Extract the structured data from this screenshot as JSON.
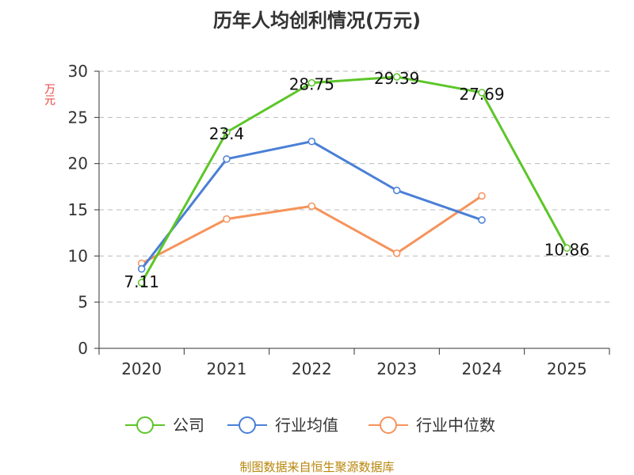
{
  "chart_data": {
    "type": "line",
    "title": "历年人均创利情况(万元)",
    "ylabel": "万元",
    "categories": [
      "2020",
      "2021",
      "2022",
      "2023",
      "2024",
      "2025"
    ],
    "ylim": [
      0,
      30
    ],
    "yticks": [
      0,
      5,
      10,
      15,
      20,
      25,
      30
    ],
    "grid": true,
    "legend_position": "bottom",
    "series": [
      {
        "name": "公司",
        "color": "#5cc629",
        "values": [
          7.11,
          23.4,
          28.75,
          29.39,
          27.69,
          10.86
        ],
        "labels": [
          "7.11",
          "23.4",
          "28.75",
          "29.39",
          "27.69",
          "10.86"
        ]
      },
      {
        "name": "行业均值",
        "color": "#4a7fd6",
        "values": [
          8.6,
          20.5,
          22.4,
          17.1,
          13.9,
          null
        ]
      },
      {
        "name": "行业中位数",
        "color": "#f6935b",
        "values": [
          9.2,
          14.0,
          15.4,
          10.3,
          16.5,
          null
        ]
      }
    ]
  },
  "footer": "制图数据来自恒生聚源数据库"
}
